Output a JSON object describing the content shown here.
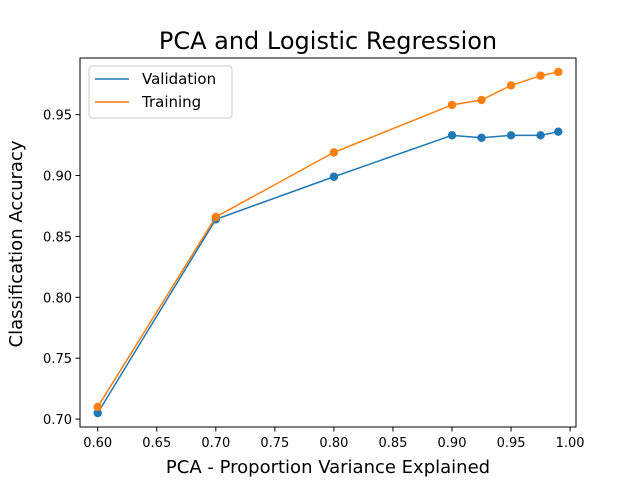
{
  "chart_data": {
    "type": "line",
    "title": "PCA and Logistic Regression",
    "xlabel": "PCA - Proportion Variance Explained",
    "ylabel": "Classification Accuracy",
    "x": [
      0.6,
      0.7,
      0.8,
      0.9,
      0.925,
      0.95,
      0.975,
      0.99
    ],
    "series": [
      {
        "name": "Validation",
        "color": "#1f77b4",
        "values": [
          0.705,
          0.864,
          0.899,
          0.933,
          0.931,
          0.933,
          0.933,
          0.936
        ]
      },
      {
        "name": "Training",
        "color": "#ff7f0e",
        "values": [
          0.71,
          0.866,
          0.919,
          0.958,
          0.962,
          0.974,
          0.982,
          0.985
        ]
      }
    ],
    "xlim": [
      0.585,
      1.005
    ],
    "ylim": [
      0.6935,
      0.9965
    ],
    "xticks": [
      "0.60",
      "0.65",
      "0.70",
      "0.75",
      "0.80",
      "0.85",
      "0.90",
      "0.95",
      "1.00"
    ],
    "yticks": [
      "0.70",
      "0.75",
      "0.80",
      "0.85",
      "0.90",
      "0.95"
    ],
    "legend": "upper-left",
    "grid": false
  }
}
